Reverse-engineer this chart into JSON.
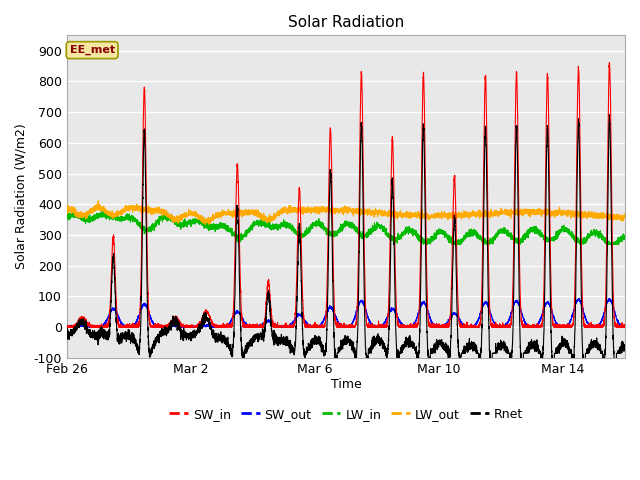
{
  "title": "Solar Radiation",
  "xlabel": "Time",
  "ylabel": "Solar Radiation (W/m2)",
  "ylim": [
    -100,
    950
  ],
  "annotation": "EE_met",
  "background_color": "#e8e8e8",
  "grid_color": "white",
  "series": {
    "SW_in": {
      "color": "#ff0000",
      "lw": 0.8,
      "zorder": 4
    },
    "SW_out": {
      "color": "#0000ff",
      "lw": 0.8,
      "zorder": 3
    },
    "LW_in": {
      "color": "#00bb00",
      "lw": 0.8,
      "zorder": 3
    },
    "LW_out": {
      "color": "#ffaa00",
      "lw": 0.8,
      "zorder": 3
    },
    "Rnet": {
      "color": "#000000",
      "lw": 0.8,
      "zorder": 5
    }
  },
  "xtick_labels": [
    "Feb 26",
    "Mar 2",
    "Mar 6",
    "Mar 10",
    "Mar 14"
  ],
  "xtick_positions": [
    0,
    4,
    8,
    12,
    16
  ],
  "ytick_positions": [
    -100,
    0,
    100,
    200,
    300,
    400,
    500,
    600,
    700,
    800,
    900
  ],
  "legend_entries": [
    "SW_in",
    "SW_out",
    "LW_in",
    "LW_out",
    "Rnet"
  ],
  "legend_colors": [
    "#ff0000",
    "#0000ff",
    "#00bb00",
    "#ffaa00",
    "#000000"
  ],
  "n_days": 18,
  "pts_per_day": 288,
  "peak_amps_sw_in": [
    30,
    295,
    780,
    30,
    50,
    530,
    150,
    450,
    650,
    825,
    615,
    820,
    490,
    820,
    830,
    820,
    845,
    855
  ],
  "peak_amps_sw_out": [
    5,
    60,
    75,
    5,
    5,
    50,
    20,
    40,
    65,
    85,
    60,
    80,
    45,
    80,
    85,
    80,
    90,
    90
  ],
  "lw_in_base": 355,
  "lw_out_base": 370,
  "night_rnet": -50,
  "figsize": [
    6.4,
    4.8
  ],
  "dpi": 100
}
